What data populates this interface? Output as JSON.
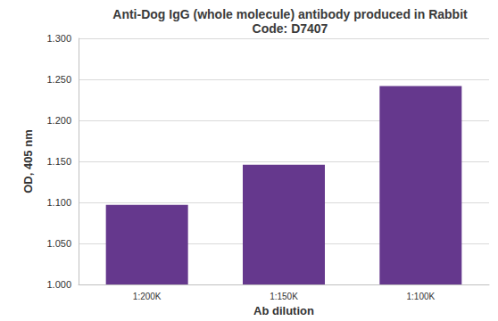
{
  "chart_data": {
    "type": "bar",
    "title": "Anti-Dog IgG (whole molecule) antibody produced in Rabbit",
    "subtitle": "Code: D7407",
    "x_label": "Ab dilution",
    "y_label": "OD, 405 nm",
    "categories": [
      "1:200K",
      "1:150K",
      "1:100K"
    ],
    "values": [
      1.097,
      1.146,
      1.242
    ],
    "color": "#65388d",
    "ylim": [
      1.0,
      1.3
    ],
    "yticks": [
      {
        "value": 1.0,
        "label": "1.000"
      },
      {
        "value": 1.05,
        "label": "1.050"
      },
      {
        "value": 1.1,
        "label": "1.100"
      },
      {
        "value": 1.15,
        "label": "1.150"
      },
      {
        "value": 1.2,
        "label": "1.200"
      },
      {
        "value": 1.25,
        "label": "1.250"
      },
      {
        "value": 1.3,
        "label": "1.300"
      }
    ],
    "grid": true
  }
}
